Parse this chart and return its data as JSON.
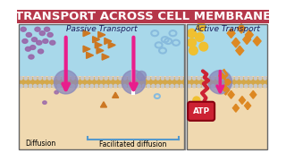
{
  "title": "TRANSPORT ACROSS CELL MEMBRANE",
  "title_bg": "#b5374a",
  "title_color": "white",
  "title_fontsize": 9.5,
  "passive_label": "Passive Transport",
  "active_label": "Active Transport",
  "diffusion_label": "Diffusion",
  "facilitated_label": "Facilitated diffusion",
  "atp_label": "ATP",
  "bg_top_color": "#a8d8ea",
  "bg_bot_color": "#f0d9b0",
  "membrane_gold": "#d4a84b",
  "membrane_dark": "#b8922e",
  "membrane_dots": "#c9c9c9",
  "arrow_color": "#e91e8c",
  "protein_color": "#8888bb",
  "purple_dot": "#9966aa",
  "orange_tri": "#cc7722",
  "blue_oval": "#88bbdd",
  "yellow_circ": "#f0c030",
  "orange_sq": "#dd8822",
  "atp_color": "#cc2233",
  "atp_text": "white",
  "label_color": "#1a1a5a",
  "brace_color": "#5599cc",
  "separator_color": "#888888"
}
